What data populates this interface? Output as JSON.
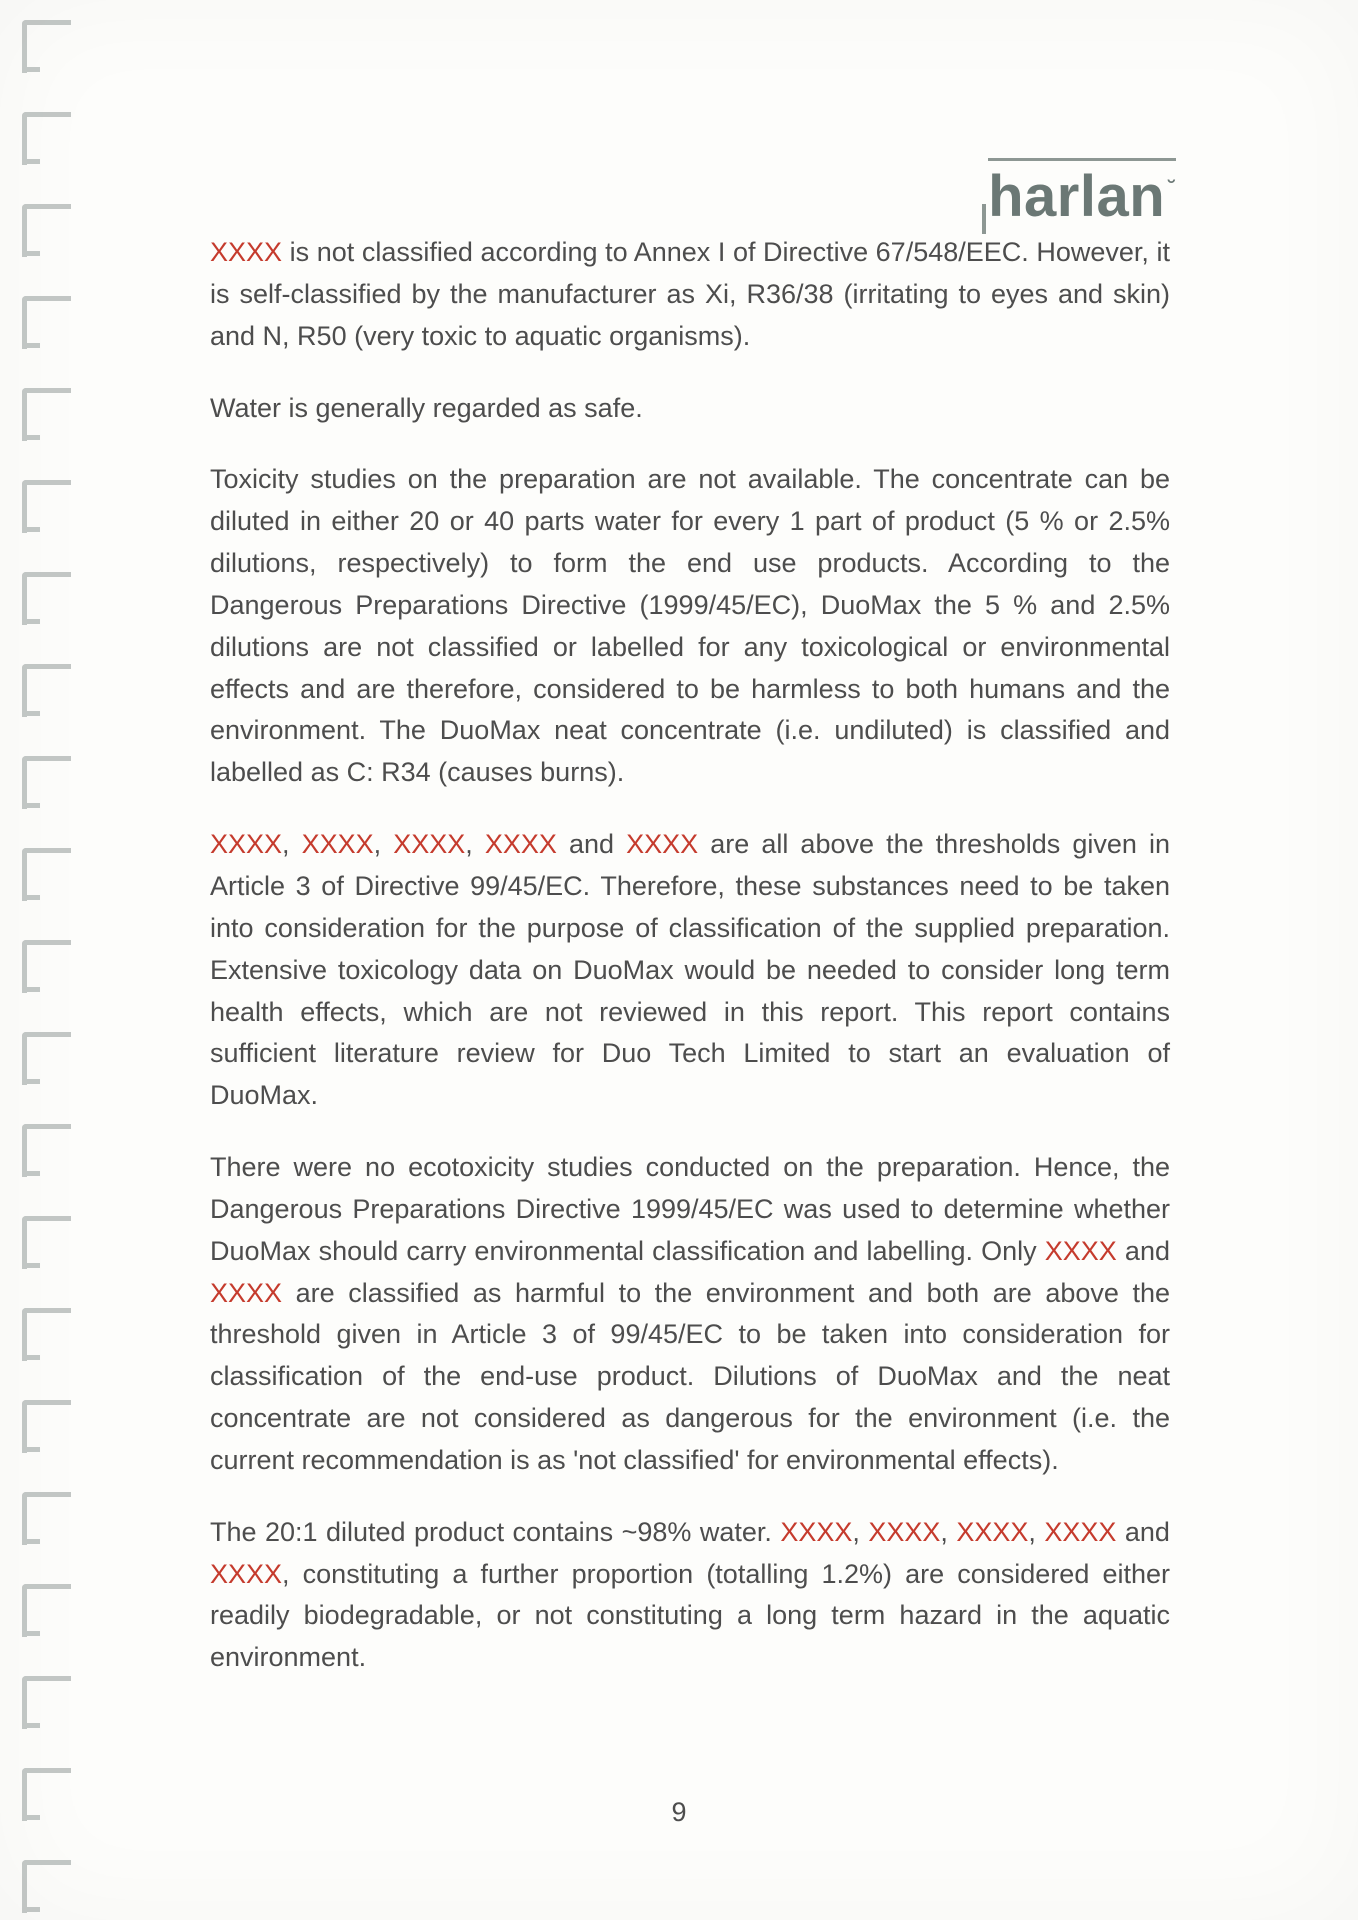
{
  "brand": {
    "text": "harlan",
    "accent": "˘"
  },
  "redact": "XXXX",
  "page_number": "9",
  "paragraphs": {
    "p1a": " is not classified according to Annex I of Directive 67/548/EEC. However, it is self-classified by the manufacturer as Xi, R36/38 (irritating to eyes and skin) and N, R50 (very toxic to aquatic organisms).",
    "p2": "Water is generally regarded as safe.",
    "p3": "Toxicity studies on the preparation are not available. The concentrate can be diluted in either 20 or 40 parts water for every 1 part of product (5 % or 2.5% dilutions, respectively) to form the end use products. According to the Dangerous Preparations Directive (1999/45/EC), DuoMax the 5 % and 2.5% dilutions are not classified or labelled for any toxicological or environmental effects and are therefore, considered to be harmless to both humans and the environment. The DuoMax neat concentrate (i.e. undiluted) is classified and labelled as C: R34 (causes burns).",
    "p4_sep": ", ",
    "p4_and": " and ",
    "p4_tail": " are all above the thresholds given in Article 3 of Directive 99/45/EC. Therefore, these substances need to be taken into consideration for the purpose of classification of the supplied preparation. Extensive toxicology data on DuoMax would be needed to consider long term health effects, which are not reviewed in this report. This report contains sufficient literature review for Duo Tech Limited to start an evaluation of DuoMax.",
    "p5_a": "There were no ecotoxicity studies conducted on the preparation. Hence, the Dangerous Preparations Directive 1999/45/EC was used to determine whether DuoMax should carry environmental classification and labelling. Only ",
    "p5_b": " and ",
    "p5_c": " are classified as harmful to the environment and both are above the threshold given in Article 3 of 99/45/EC to be taken into consideration for classification of the end-use product. Dilutions of DuoMax and the neat concentrate are not considered as dangerous for the environment (i.e. the current recommendation is as 'not classified' for environmental effects).",
    "p6_a": "The 20:1 diluted product contains ~98% water. ",
    "p6_b": ", constituting a further proportion (totalling 1.2%) are considered either readily biodegradable, or not constituting a long term hazard in the aquatic environment."
  },
  "binding_marks": {
    "count": 21,
    "top_start": 20,
    "spacing": 92
  },
  "colors": {
    "redact": "#c53b2d",
    "text": "#4d4d4d",
    "brand": "#6b7875",
    "brand_rule": "#8d9793",
    "page_bg": "#fdfdfb",
    "tick": "#b8bdbb"
  }
}
